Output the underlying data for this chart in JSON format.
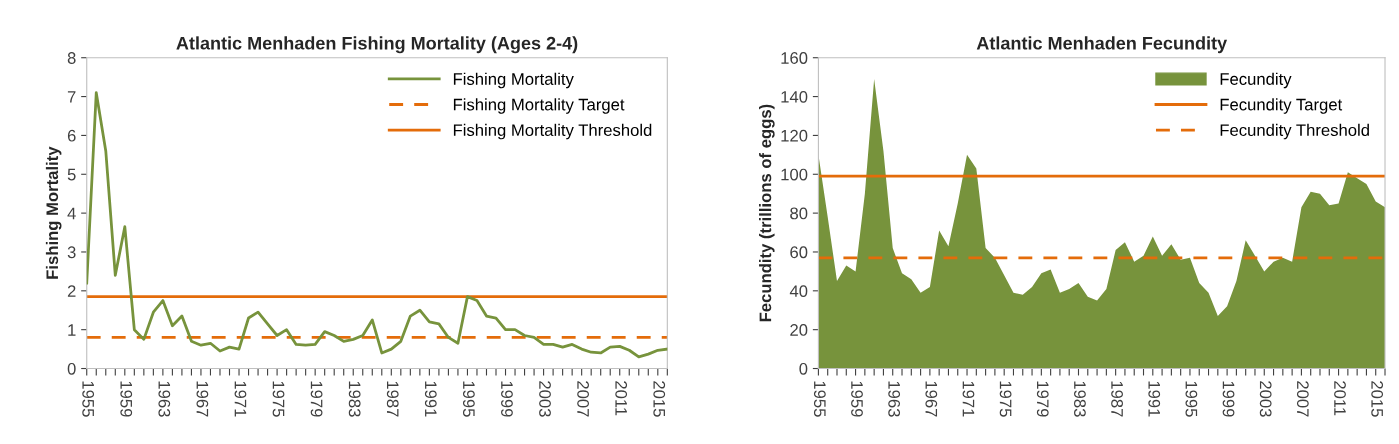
{
  "chart_data": [
    {
      "type": "line",
      "title": "Atlantic Menhaden Fishing Mortality (Ages 2-4)",
      "ylabel": "Fishing Mortality",
      "categories": [
        "1955",
        null,
        null,
        null,
        "1959",
        null,
        null,
        null,
        "1963",
        null,
        null,
        null,
        "1967",
        null,
        null,
        null,
        "1971",
        null,
        null,
        null,
        "1975",
        null,
        null,
        null,
        "1979",
        null,
        null,
        null,
        "1983",
        null,
        null,
        null,
        "1987",
        null,
        null,
        null,
        "1991",
        null,
        null,
        null,
        "1995",
        null,
        null,
        null,
        "1999",
        null,
        null,
        null,
        "2003",
        null,
        null,
        null,
        "2007",
        null,
        null,
        null,
        "2011",
        null,
        null,
        null,
        "2015",
        null
      ],
      "series": [
        {
          "name": "Fishing Mortality",
          "color": "#77933c",
          "values": [
            2.2,
            7.1,
            5.6,
            2.4,
            3.65,
            1.0,
            0.75,
            1.45,
            1.75,
            1.1,
            1.35,
            0.7,
            0.6,
            0.65,
            0.45,
            0.55,
            0.5,
            1.3,
            1.45,
            1.15,
            0.85,
            1.0,
            0.62,
            0.6,
            0.62,
            0.95,
            0.85,
            0.7,
            0.75,
            0.85,
            1.25,
            0.4,
            0.5,
            0.7,
            1.35,
            1.5,
            1.2,
            1.15,
            0.8,
            0.65,
            1.85,
            1.75,
            1.35,
            1.3,
            1.0,
            1.0,
            0.85,
            0.8,
            0.62,
            0.62,
            0.55,
            0.62,
            0.5,
            0.42,
            0.4,
            0.55,
            0.57,
            0.47,
            0.3,
            0.37,
            0.47,
            0.5
          ]
        }
      ],
      "ref_lines": [
        {
          "axis": "y",
          "value": 0.8,
          "label": "Fishing Mortality Target",
          "color": "#e46c0a",
          "line_style": "dashed"
        },
        {
          "axis": "y",
          "value": 1.85,
          "label": "Fishing Mortality Threshold",
          "color": "#e46c0a",
          "line_style": "solid"
        }
      ],
      "ylim": [
        0,
        8
      ],
      "yticks": [
        0,
        1,
        2,
        3,
        4,
        5,
        6,
        7,
        8
      ],
      "grid": false,
      "legend": "top right"
    },
    {
      "type": "area",
      "title": "Atlantic Menhaden Fecundity",
      "ylabel": "Fecundity (trillions of eggs)",
      "categories": [
        "1955",
        null,
        null,
        null,
        "1959",
        null,
        null,
        null,
        "1963",
        null,
        null,
        null,
        "1967",
        null,
        null,
        null,
        "1971",
        null,
        null,
        null,
        "1975",
        null,
        null,
        null,
        "1979",
        null,
        null,
        null,
        "1983",
        null,
        null,
        null,
        "1987",
        null,
        null,
        null,
        "1991",
        null,
        null,
        null,
        "1995",
        null,
        null,
        null,
        "1999",
        null,
        null,
        null,
        "2003",
        null,
        null,
        null,
        "2007",
        null,
        null,
        null,
        "2011",
        null,
        null,
        null,
        "2015",
        null
      ],
      "series": [
        {
          "name": "Fecundity",
          "color": "#77933c",
          "values": [
            110,
            78,
            45,
            53,
            50,
            90,
            149,
            112,
            62,
            49,
            46,
            39,
            42,
            71,
            63,
            85,
            110,
            103,
            62,
            57,
            48,
            39,
            38,
            42,
            49,
            51,
            39,
            41,
            44,
            37,
            35,
            41,
            61,
            65,
            55,
            58,
            68,
            58,
            64,
            56,
            57,
            44,
            39,
            27,
            32,
            45,
            66,
            58,
            50,
            55,
            57,
            55,
            83,
            91,
            90,
            84,
            85,
            101,
            98,
            95,
            86,
            83
          ]
        }
      ],
      "ref_lines": [
        {
          "axis": "y",
          "value": 99,
          "label": "Fecundity Target",
          "color": "#e46c0a",
          "line_style": "solid"
        },
        {
          "axis": "y",
          "value": 57,
          "label": "Fecundity Threshold",
          "color": "#e46c0a",
          "line_style": "dashed"
        }
      ],
      "ylim": [
        0,
        160
      ],
      "yticks": [
        0,
        20,
        40,
        60,
        80,
        100,
        120,
        140,
        160
      ],
      "grid": false,
      "legend": "top right"
    }
  ]
}
